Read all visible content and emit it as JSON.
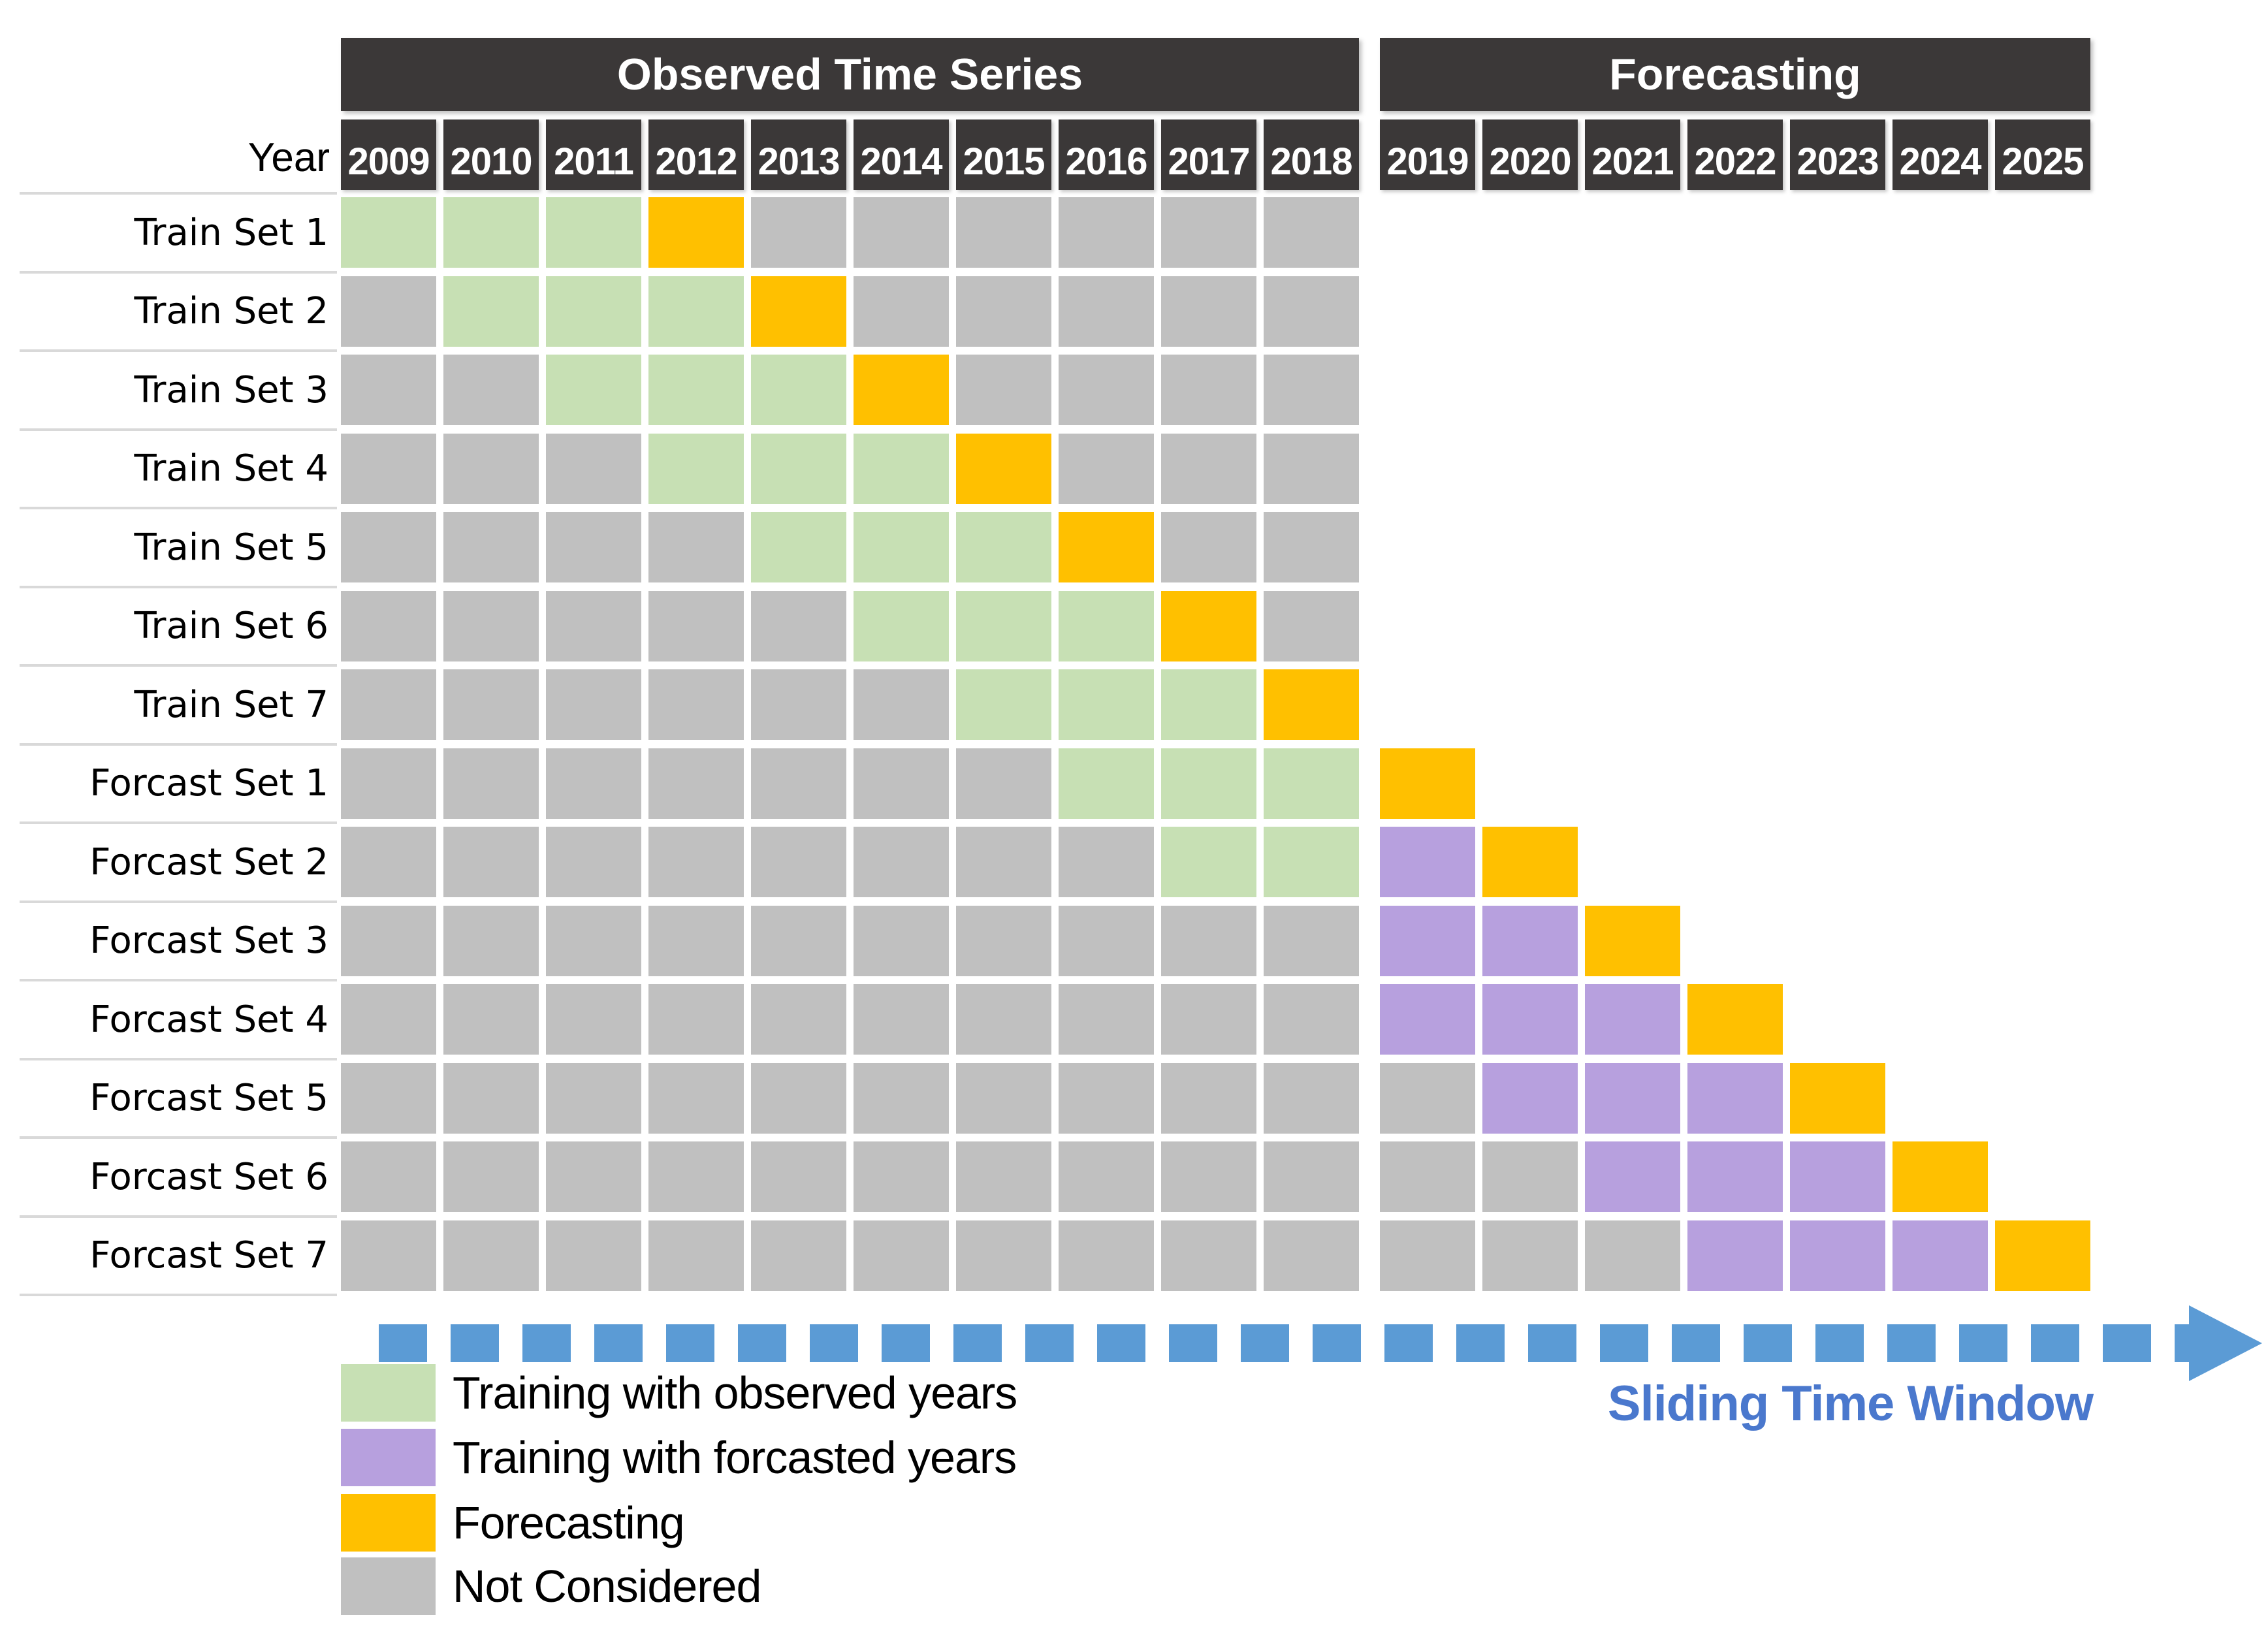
{
  "header": {
    "observed_title": "Observed Time Series",
    "forecasting_title": "Forecasting",
    "year_label": "Year"
  },
  "observed_years": [
    "2009",
    "2010",
    "2011",
    "2012",
    "2013",
    "2014",
    "2015",
    "2016",
    "2017",
    "2018"
  ],
  "forecast_years": [
    "2019",
    "2020",
    "2021",
    "2022",
    "2023",
    "2024",
    "2025"
  ],
  "cell_legend_key": {
    "G": "training_observed",
    "P": "training_forecasted",
    "O": "forecasting",
    "N": "not_considered",
    "_": "empty"
  },
  "rows": [
    {
      "label": "Train Set 1",
      "cells": [
        "G",
        "G",
        "G",
        "O",
        "N",
        "N",
        "N",
        "N",
        "N",
        "N",
        "_",
        "_",
        "_",
        "_",
        "_",
        "_",
        "_"
      ]
    },
    {
      "label": "Train Set 2",
      "cells": [
        "N",
        "G",
        "G",
        "G",
        "O",
        "N",
        "N",
        "N",
        "N",
        "N",
        "_",
        "_",
        "_",
        "_",
        "_",
        "_",
        "_"
      ]
    },
    {
      "label": "Train Set 3",
      "cells": [
        "N",
        "N",
        "G",
        "G",
        "G",
        "O",
        "N",
        "N",
        "N",
        "N",
        "_",
        "_",
        "_",
        "_",
        "_",
        "_",
        "_"
      ]
    },
    {
      "label": "Train Set 4",
      "cells": [
        "N",
        "N",
        "N",
        "G",
        "G",
        "G",
        "O",
        "N",
        "N",
        "N",
        "_",
        "_",
        "_",
        "_",
        "_",
        "_",
        "_"
      ]
    },
    {
      "label": "Train Set 5",
      "cells": [
        "N",
        "N",
        "N",
        "N",
        "G",
        "G",
        "G",
        "O",
        "N",
        "N",
        "_",
        "_",
        "_",
        "_",
        "_",
        "_",
        "_"
      ]
    },
    {
      "label": "Train Set 6",
      "cells": [
        "N",
        "N",
        "N",
        "N",
        "N",
        "G",
        "G",
        "G",
        "O",
        "N",
        "_",
        "_",
        "_",
        "_",
        "_",
        "_",
        "_"
      ]
    },
    {
      "label": "Train Set 7",
      "cells": [
        "N",
        "N",
        "N",
        "N",
        "N",
        "N",
        "G",
        "G",
        "G",
        "O",
        "_",
        "_",
        "_",
        "_",
        "_",
        "_",
        "_"
      ]
    },
    {
      "label": "Forcast Set 1",
      "cells": [
        "N",
        "N",
        "N",
        "N",
        "N",
        "N",
        "N",
        "G",
        "G",
        "G",
        "O",
        "_",
        "_",
        "_",
        "_",
        "_",
        "_"
      ]
    },
    {
      "label": "Forcast Set 2",
      "cells": [
        "N",
        "N",
        "N",
        "N",
        "N",
        "N",
        "N",
        "N",
        "G",
        "G",
        "P",
        "O",
        "_",
        "_",
        "_",
        "_",
        "_"
      ]
    },
    {
      "label": "Forcast Set 3",
      "cells": [
        "N",
        "N",
        "N",
        "N",
        "N",
        "N",
        "N",
        "N",
        "N",
        "N",
        "P",
        "P",
        "O",
        "_",
        "_",
        "_",
        "_"
      ]
    },
    {
      "label": "Forcast Set 4",
      "cells": [
        "N",
        "N",
        "N",
        "N",
        "N",
        "N",
        "N",
        "N",
        "N",
        "N",
        "P",
        "P",
        "P",
        "O",
        "_",
        "_",
        "_"
      ]
    },
    {
      "label": "Forcast Set 5",
      "cells": [
        "N",
        "N",
        "N",
        "N",
        "N",
        "N",
        "N",
        "N",
        "N",
        "N",
        "N",
        "P",
        "P",
        "P",
        "O",
        "_",
        "_"
      ]
    },
    {
      "label": "Forcast Set 6",
      "cells": [
        "N",
        "N",
        "N",
        "N",
        "N",
        "N",
        "N",
        "N",
        "N",
        "N",
        "N",
        "N",
        "P",
        "P",
        "P",
        "O",
        "_"
      ]
    },
    {
      "label": "Forcast Set 7",
      "cells": [
        "N",
        "N",
        "N",
        "N",
        "N",
        "N",
        "N",
        "N",
        "N",
        "N",
        "N",
        "N",
        "N",
        "P",
        "P",
        "P",
        "O"
      ]
    }
  ],
  "legend": [
    {
      "key": "G",
      "label": "Training with observed years"
    },
    {
      "key": "P",
      "label": "Training with forcasted years"
    },
    {
      "key": "O",
      "label": "Forecasting"
    },
    {
      "key": "N",
      "label": "Not Considered"
    }
  ],
  "arrow": {
    "label": "Sliding Time Window"
  },
  "colors": {
    "G": "#c7e0b4",
    "P": "#b7a0de",
    "O": "#ffc000",
    "N": "#c0c0c0",
    "header_bg": "#3b3838",
    "header_text": "#ffffff",
    "arrow_blue": "#5b9bd5",
    "arrow_label_blue": "#4a78cd",
    "separator": "#d9d9d9"
  }
}
